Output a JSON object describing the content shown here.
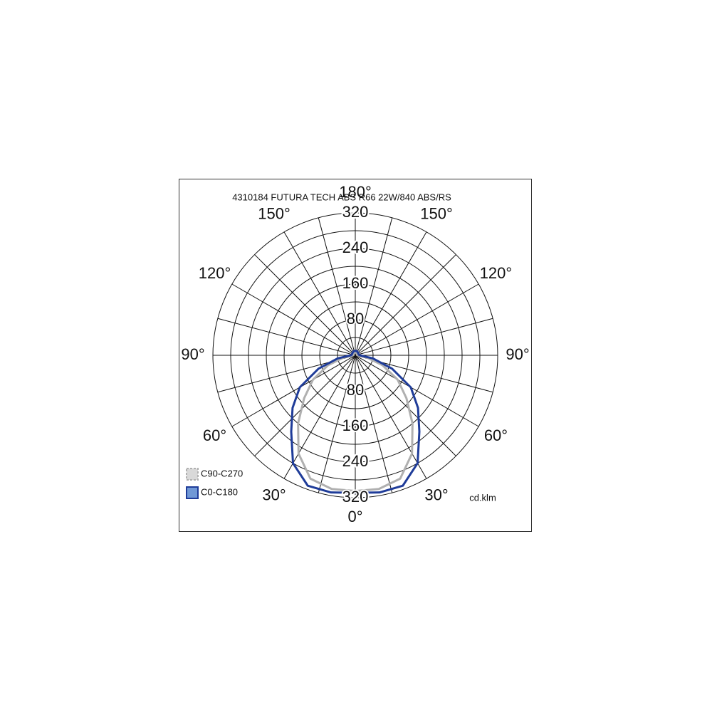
{
  "chart_data": {
    "type": "polar",
    "title": "4310184 FUTURA TECH ABS R66 22W/840 ABS/RS",
    "unit_label": "cd.klm",
    "rlim": [
      0,
      320
    ],
    "rticks": [
      80,
      160,
      240,
      320
    ],
    "rgrid_step": 40,
    "spoke_step": 15,
    "angle_ticks": [
      {
        "value": 0,
        "label": "0°"
      },
      {
        "value": 30,
        "label": "30°"
      },
      {
        "value": 60,
        "label": "60°"
      },
      {
        "value": 90,
        "label": "90°"
      },
      {
        "value": 120,
        "label": "120°"
      },
      {
        "value": 150,
        "label": "150°"
      },
      {
        "value": 180,
        "label": "180°"
      }
    ],
    "theta": [
      0,
      10,
      20,
      30,
      40,
      50,
      60,
      70,
      80,
      90,
      100,
      110,
      120,
      130,
      140,
      150,
      160,
      170,
      180
    ],
    "series": [
      {
        "name": "C90-C270",
        "color": "#b0b0b0",
        "fill": "#d9d9d9",
        "values": [
          305,
          305,
          295,
          255,
          200,
          150,
          110,
          65,
          25,
          5,
          4,
          4,
          4,
          5,
          5,
          6,
          6,
          6,
          6
        ]
      },
      {
        "name": "C0-C180",
        "color": "#1f3c99",
        "fill": "#7098d6",
        "values": [
          309,
          313,
          312,
          280,
          224,
          184,
          144,
          88,
          40,
          10,
          8,
          8,
          8,
          8,
          9,
          9,
          10,
          10,
          10
        ]
      }
    ]
  }
}
